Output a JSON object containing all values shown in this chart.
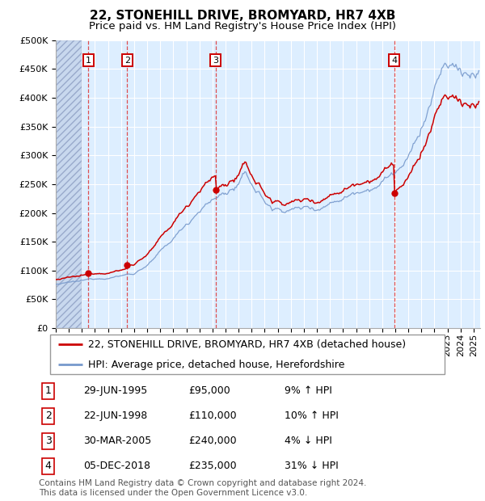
{
  "title": "22, STONEHILL DRIVE, BROMYARD, HR7 4XB",
  "subtitle": "Price paid vs. HM Land Registry's House Price Index (HPI)",
  "footer": "Contains HM Land Registry data © Crown copyright and database right 2024.\nThis data is licensed under the Open Government Licence v3.0.",
  "legend_line1": "22, STONEHILL DRIVE, BROMYARD, HR7 4XB (detached house)",
  "legend_line2": "HPI: Average price, detached house, Herefordshire",
  "trans_info": [
    {
      "num": "1",
      "date": "29-JUN-1995",
      "price": "£95,000",
      "pct": "9% ↑ HPI",
      "year": 1995.49,
      "val": 95000
    },
    {
      "num": "2",
      "date": "22-JUN-1998",
      "price": "£110,000",
      "pct": "10% ↑ HPI",
      "year": 1998.47,
      "val": 110000
    },
    {
      "num": "3",
      "date": "30-MAR-2005",
      "price": "£240,000",
      "pct": "4% ↓ HPI",
      "year": 2005.24,
      "val": 240000
    },
    {
      "num": "4",
      "date": "05-DEC-2018",
      "price": "£235,000",
      "pct": "31% ↓ HPI",
      "year": 2018.92,
      "val": 235000
    }
  ],
  "ylim": [
    0,
    500000
  ],
  "yticks": [
    0,
    50000,
    100000,
    150000,
    200000,
    250000,
    300000,
    350000,
    400000,
    450000,
    500000
  ],
  "xlim_start": 1993.0,
  "xlim_end": 2025.5,
  "hatch_end": 1995.0,
  "plot_bg": "#ddeeff",
  "grid_color": "#ffffff",
  "red_line_color": "#cc0000",
  "blue_line_color": "#7799cc",
  "vline_color_early": "#aaaacc",
  "vline_color_late": "#cc2222",
  "marker_color": "#cc0000",
  "box_edgecolor": "#cc0000",
  "title_fontsize": 11,
  "subtitle_fontsize": 9.5,
  "tick_fontsize": 8,
  "legend_fontsize": 9,
  "table_fontsize": 9,
  "footer_fontsize": 7.5
}
